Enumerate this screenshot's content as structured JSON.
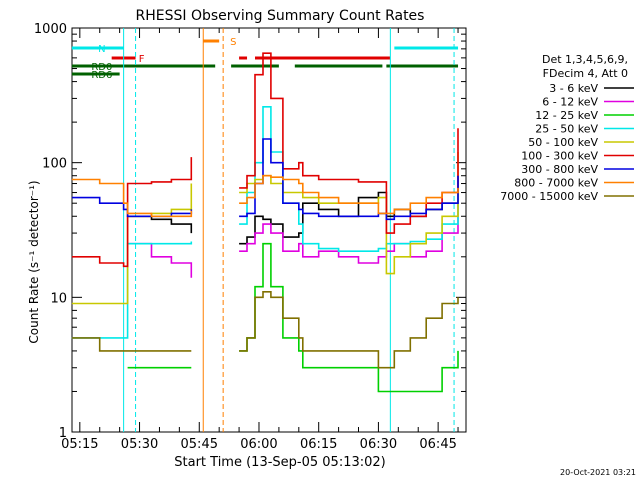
{
  "chart_data": {
    "type": "line",
    "title": "RHESSI Observing Summary Count Rates",
    "xlabel": "Start Time (13-Sep-05 05:13:02)",
    "ylabel": "Count Rate (s⁻¹ detector⁻¹)",
    "yscale": "log",
    "ylim": [
      1,
      1000
    ],
    "xlim": [
      "05:13:02",
      "06:52:00"
    ],
    "x_ticks": [
      "05:15",
      "05:30",
      "05:45",
      "06:00",
      "06:15",
      "06:30",
      "06:45"
    ],
    "y_ticks": [
      "1",
      "10",
      "100",
      "1000"
    ],
    "grid": false,
    "footer_date": "20-Oct-2021 03:21",
    "legend_header": [
      "Det 1,3,4,5,6,9,",
      "FDecim 4, Att 0"
    ],
    "legend_position": "right",
    "time_points": [
      "05:13",
      "05:20",
      "05:26",
      "05:27",
      "05:33",
      "05:38",
      "05:43",
      "05:45",
      "05:53",
      "05:55",
      "05:57",
      "05:59",
      "06:01",
      "06:03",
      "06:06",
      "06:10",
      "06:11",
      "06:15",
      "06:20",
      "06:25",
      "06:30",
      "06:32",
      "06:34",
      "06:38",
      "06:42",
      "06:46",
      "06:50"
    ],
    "series": [
      {
        "name": "3 - 6 keV",
        "color": "#000000",
        "values": [
          null,
          null,
          null,
          40,
          38,
          35,
          30,
          null,
          null,
          25,
          28,
          40,
          38,
          35,
          28,
          30,
          50,
          45,
          40,
          55,
          60,
          40,
          45,
          40,
          45,
          50,
          70
        ]
      },
      {
        "name": "6 - 12 keV",
        "color": "#e000e0",
        "values": [
          null,
          null,
          null,
          25,
          20,
          18,
          14,
          null,
          null,
          22,
          25,
          30,
          35,
          30,
          22,
          25,
          20,
          22,
          20,
          18,
          20,
          22,
          25,
          20,
          22,
          30,
          80
        ]
      },
      {
        "name": "12 - 25 keV",
        "color": "#00d000",
        "values": [
          null,
          null,
          null,
          3,
          3,
          3,
          3,
          null,
          null,
          4,
          5,
          12,
          25,
          12,
          5,
          4,
          3,
          3,
          3,
          3,
          2,
          2,
          2,
          2,
          2,
          3,
          4
        ]
      },
      {
        "name": "25 - 50 keV",
        "color": "#00e8e8",
        "values": [
          5,
          5,
          5,
          25,
          25,
          25,
          26,
          null,
          null,
          35,
          60,
          100,
          260,
          120,
          50,
          35,
          25,
          23,
          22,
          22,
          23,
          25,
          25,
          26,
          27,
          35,
          80
        ]
      },
      {
        "name": "50 - 100 keV",
        "color": "#c8c800",
        "values": [
          9,
          9,
          9,
          40,
          42,
          45,
          70,
          null,
          null,
          60,
          70,
          75,
          80,
          70,
          60,
          60,
          55,
          50,
          50,
          50,
          55,
          15,
          20,
          25,
          30,
          40,
          120
        ]
      },
      {
        "name": "100 - 300 keV",
        "color": "#e00000",
        "values": [
          20,
          18,
          17,
          70,
          72,
          75,
          110,
          null,
          null,
          65,
          80,
          450,
          650,
          300,
          90,
          100,
          80,
          75,
          75,
          72,
          72,
          30,
          35,
          40,
          50,
          60,
          180
        ]
      },
      {
        "name": "300 - 800 keV",
        "color": "#0000e0",
        "values": [
          55,
          50,
          45,
          40,
          40,
          42,
          45,
          null,
          null,
          40,
          42,
          70,
          150,
          100,
          50,
          45,
          42,
          40,
          40,
          40,
          42,
          38,
          40,
          42,
          45,
          50,
          80
        ]
      },
      {
        "name": "800 - 7000 keV",
        "color": "#ff8000",
        "values": [
          75,
          70,
          50,
          42,
          40,
          40,
          44,
          null,
          null,
          50,
          55,
          70,
          80,
          78,
          75,
          70,
          60,
          55,
          50,
          50,
          42,
          42,
          45,
          50,
          55,
          60,
          65
        ]
      },
      {
        "name": "7000 - 15000 keV",
        "color": "#807000",
        "values": [
          5,
          4,
          4,
          4,
          4,
          4,
          4,
          null,
          null,
          4,
          5,
          10,
          11,
          10,
          7,
          5,
          4,
          4,
          4,
          4,
          3,
          3,
          4,
          5,
          7,
          9,
          10
        ]
      }
    ],
    "annotations": [
      {
        "label": "N",
        "color": "#00e8e8",
        "segments": [
          [
            "05:13",
            "05:26"
          ],
          [
            "06:34",
            "06:50"
          ]
        ]
      },
      {
        "label": "F",
        "color": "#e00000",
        "segments": [
          [
            "05:23",
            "05:29"
          ],
          [
            "05:55",
            "05:57"
          ],
          [
            "05:59",
            "06:33"
          ]
        ]
      },
      {
        "label": "S",
        "color": "#ff8000",
        "segments": [
          [
            "05:46",
            "05:50"
          ]
        ]
      },
      {
        "label": "RD0",
        "color": "#006000",
        "segments": [
          [
            "05:13",
            "05:49"
          ],
          [
            "05:53",
            "06:05"
          ],
          [
            "06:09",
            "06:31"
          ],
          [
            "06:32",
            "06:50"
          ]
        ]
      },
      {
        "label": "RD6",
        "color": "#006000",
        "segments": [
          [
            "05:13",
            "05:25"
          ]
        ]
      }
    ]
  }
}
